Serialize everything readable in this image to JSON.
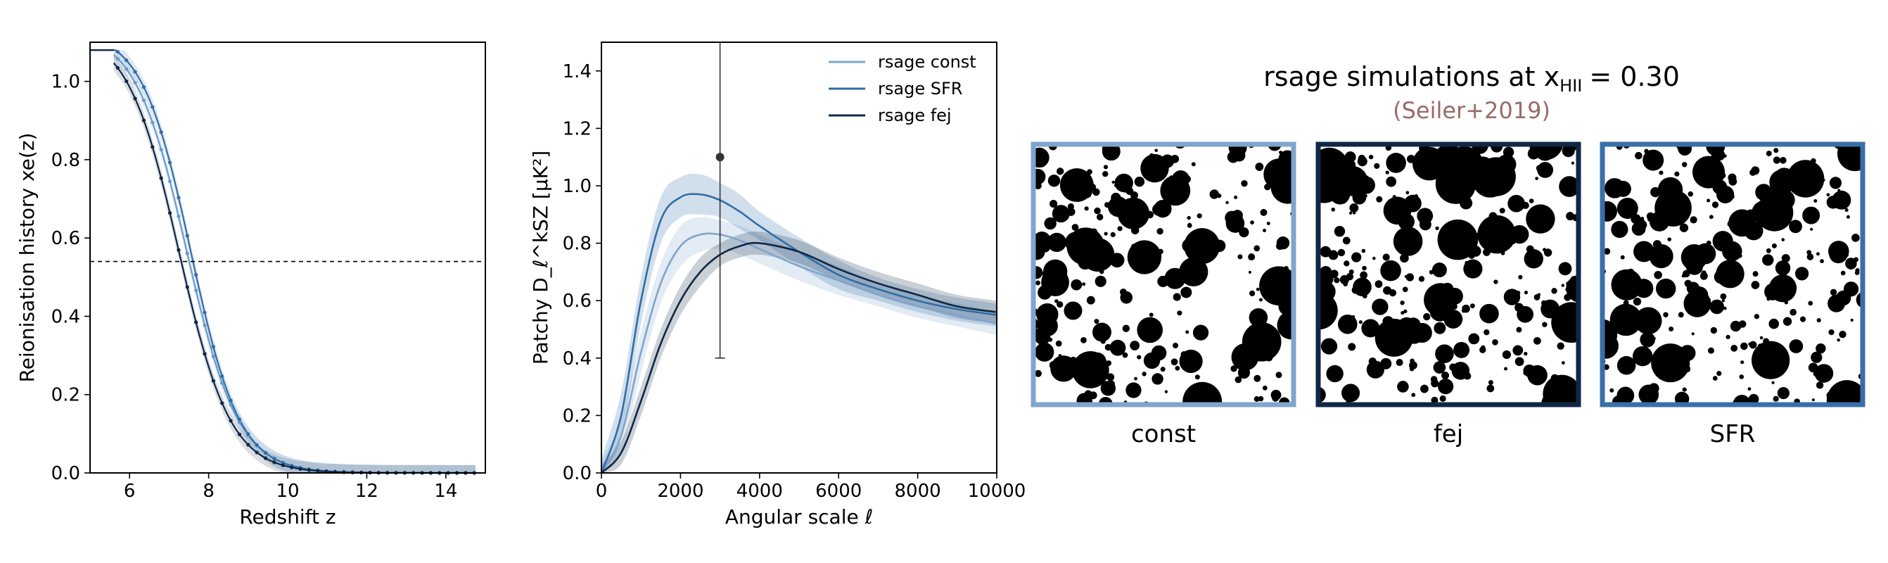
{
  "chart_data": [
    {
      "type": "line",
      "xlabel": "Redshift z",
      "ylabel": "Reionisation history xe(z)",
      "xlim": [
        5,
        15
      ],
      "ylim": [
        0,
        1.1
      ],
      "xticks": [
        6,
        8,
        10,
        12,
        14
      ],
      "yticks": [
        0.0,
        0.2,
        0.4,
        0.6,
        0.8,
        1.0
      ],
      "reference_line_y": 0.54,
      "plateau": 1.08,
      "series": [
        {
          "z50": 7.45,
          "width": 1.05,
          "color": "#6a9bc9"
        },
        {
          "z50": 7.55,
          "width": 1.0,
          "color": "#2f6ea8"
        },
        {
          "z50": 7.25,
          "width": 1.05,
          "color": "#0f2744"
        }
      ]
    },
    {
      "type": "line",
      "xlabel": "Angular scale ℓ",
      "ylabel": "Patchy D_ℓ^kSZ [μK²]",
      "xlim": [
        0,
        10000
      ],
      "ylim": [
        0,
        1.5
      ],
      "xticks": [
        0,
        2000,
        4000,
        6000,
        8000,
        10000
      ],
      "yticks": [
        0.0,
        0.2,
        0.4,
        0.6,
        0.8,
        1.0,
        1.2,
        1.4
      ],
      "legend_position": "top-right",
      "series": [
        {
          "name": "rsage const",
          "color": "#7fa5cc",
          "x": [
            0,
            500,
            1000,
            1500,
            2000,
            2500,
            3000,
            3500,
            4000,
            5000,
            6000,
            7000,
            8000,
            9000,
            10000
          ],
          "y": [
            0,
            0.13,
            0.42,
            0.66,
            0.79,
            0.83,
            0.83,
            0.81,
            0.78,
            0.72,
            0.67,
            0.62,
            0.58,
            0.55,
            0.52
          ],
          "band": [
            0.04,
            0.06,
            0.07,
            0.07,
            0.07,
            0.06,
            0.05,
            0.05,
            0.05,
            0.05,
            0.05,
            0.04,
            0.04,
            0.04,
            0.04
          ]
        },
        {
          "name": "rsage SFR",
          "color": "#2f6ea8",
          "x": [
            0,
            500,
            1000,
            1500,
            2000,
            2500,
            3000,
            3500,
            4000,
            5000,
            6000,
            7000,
            8000,
            9000,
            10000
          ],
          "y": [
            0,
            0.2,
            0.6,
            0.88,
            0.96,
            0.97,
            0.95,
            0.91,
            0.86,
            0.77,
            0.69,
            0.64,
            0.6,
            0.57,
            0.55
          ],
          "band": [
            0.05,
            0.08,
            0.08,
            0.08,
            0.07,
            0.07,
            0.06,
            0.06,
            0.05,
            0.05,
            0.05,
            0.04,
            0.04,
            0.04,
            0.04
          ]
        },
        {
          "name": "rsage fej",
          "color": "#0f2744",
          "x": [
            0,
            500,
            1000,
            1500,
            2000,
            2500,
            3000,
            3500,
            4000,
            5000,
            6000,
            7000,
            8000,
            9000,
            10000
          ],
          "y": [
            0,
            0.07,
            0.25,
            0.45,
            0.6,
            0.7,
            0.76,
            0.79,
            0.8,
            0.77,
            0.71,
            0.66,
            0.62,
            0.58,
            0.56
          ],
          "band": [
            0.03,
            0.04,
            0.05,
            0.05,
            0.05,
            0.05,
            0.04,
            0.04,
            0.04,
            0.04,
            0.04,
            0.04,
            0.04,
            0.04,
            0.04
          ]
        }
      ],
      "errorbar": {
        "x": 3000,
        "y": 1.1,
        "low": 0.4,
        "high": 1.5
      }
    }
  ],
  "panel_right": {
    "title_main": "rsage simulations at x",
    "title_sub": "HII",
    "title_value": "= 0.30",
    "citation": "(Seiler+2019)",
    "maps": [
      {
        "label": "const",
        "border": "#7fa5cc",
        "seed": 11
      },
      {
        "label": "fej",
        "border": "#0f2744",
        "seed": 23
      },
      {
        "label": "SFR",
        "border": "#3a6fa8",
        "seed": 37
      }
    ]
  }
}
